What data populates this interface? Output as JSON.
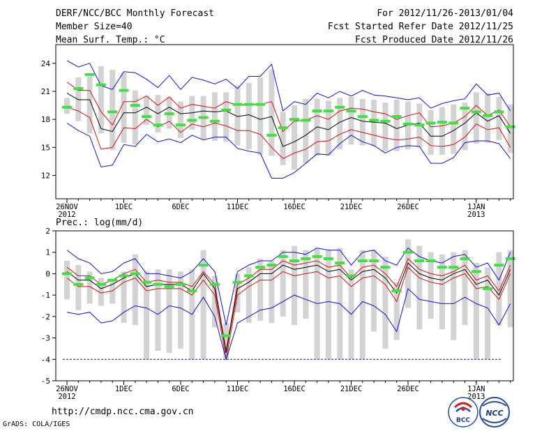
{
  "header": {
    "title": "DERF/NCC/BCC Monthly Forecast",
    "member_size": "Member Size=40",
    "temp_label": "Mean Surf. Temp.: °C",
    "forecast_period": "For 2012/11/26-2013/01/04",
    "start_date": "Fcst Started Refer Date 2012/11/25",
    "produced_date": "Fcst Produced Date 2012/11/26"
  },
  "footer": {
    "url": "http://cmdp.ncc.cma.gov.cn",
    "grads": "GrADS: COLA/IGES",
    "logo1": "BCC",
    "logo2": "NCC"
  },
  "colors": {
    "envelope": "#1010d0",
    "spread": "#d01010",
    "mean": "#000000",
    "box": "#d3d3d3",
    "obs": "#40e040",
    "frame": "#000000"
  },
  "chart_data": [
    {
      "type": "line",
      "title": "Mean Surf. Temp.: °C",
      "xlabel": "",
      "ylabel": "°C",
      "ylim": [
        9.5,
        26
      ],
      "yticks": [
        12,
        15,
        18,
        21,
        24
      ],
      "xtick_labels": [
        {
          "day": 1,
          "label": "26NOV",
          "sub": "2012"
        },
        {
          "day": 6,
          "label": "1DEC"
        },
        {
          "day": 11,
          "label": "6DEC"
        },
        {
          "day": 16,
          "label": "11DEC"
        },
        {
          "day": 21,
          "label": "16DEC"
        },
        {
          "day": 26,
          "label": "21DEC"
        },
        {
          "day": 31,
          "label": "26DEC"
        },
        {
          "day": 37,
          "label": "1JAN",
          "sub": "2013"
        }
      ],
      "days": [
        1,
        2,
        3,
        4,
        5,
        6,
        7,
        8,
        9,
        10,
        11,
        12,
        13,
        14,
        15,
        16,
        17,
        18,
        19,
        20,
        21,
        22,
        23,
        24,
        25,
        26,
        27,
        28,
        29,
        30,
        31,
        32,
        33,
        34,
        35,
        36,
        37,
        38,
        39,
        40
      ],
      "series": [
        {
          "name": "max",
          "role": "envelope",
          "values": [
            24.3,
            23.6,
            24.0,
            21.6,
            21.2,
            23.1,
            23.0,
            22.3,
            21.4,
            22.7,
            21.2,
            22.5,
            22.2,
            21.8,
            22.3,
            21.3,
            22.6,
            22.6,
            23.9,
            18.9,
            19.9,
            19.6,
            20.8,
            20.3,
            21.0,
            20.5,
            21.1,
            20.6,
            20.5,
            20.3,
            20.1,
            20.3,
            19.2,
            19.7,
            20.0,
            20.2,
            21.8,
            20.6,
            20.8,
            18.9
          ]
        },
        {
          "name": "upper",
          "role": "spread",
          "values": [
            22.0,
            21.1,
            21.1,
            18.8,
            17.4,
            19.9,
            19.9,
            20.5,
            19.5,
            20.4,
            19.2,
            19.6,
            19.4,
            19.2,
            19.9,
            19.5,
            19.6,
            19.6,
            19.9,
            16.7,
            17.8,
            17.9,
            18.4,
            18.0,
            18.9,
            19.2,
            19.1,
            18.8,
            18.6,
            18.0,
            18.4,
            18.7,
            17.2,
            17.3,
            17.6,
            18.3,
            19.5,
            18.4,
            19.0,
            17.2
          ]
        },
        {
          "name": "mean",
          "role": "mean",
          "values": [
            20.8,
            20.1,
            20.1,
            17.0,
            16.7,
            18.7,
            18.7,
            19.3,
            18.6,
            19.3,
            18.6,
            18.7,
            18.9,
            18.8,
            18.9,
            18.3,
            18.5,
            18.0,
            18.3,
            15.1,
            15.6,
            16.3,
            17.2,
            16.9,
            17.7,
            18.2,
            17.8,
            17.7,
            17.6,
            17.0,
            17.4,
            17.6,
            16.2,
            16.2,
            16.8,
            17.6,
            18.7,
            17.8,
            18.4,
            16.5
          ]
        },
        {
          "name": "lower",
          "role": "spread",
          "values": [
            19.3,
            18.9,
            18.2,
            14.8,
            15.0,
            17.1,
            17.0,
            18.0,
            17.2,
            17.8,
            16.6,
            17.5,
            17.2,
            17.6,
            17.3,
            16.8,
            16.8,
            16.4,
            15.0,
            13.8,
            14.4,
            14.8,
            15.6,
            15.7,
            16.4,
            16.9,
            16.6,
            16.3,
            16.0,
            15.8,
            15.9,
            16.1,
            15.2,
            15.1,
            15.3,
            16.1,
            17.5,
            16.9,
            17.1,
            15.0
          ]
        },
        {
          "name": "min",
          "role": "envelope",
          "values": [
            17.6,
            16.8,
            16.2,
            12.9,
            13.1,
            15.3,
            15.1,
            16.4,
            15.6,
            15.9,
            15.5,
            16.3,
            15.8,
            16.1,
            16.1,
            14.9,
            14.6,
            14.4,
            11.7,
            11.7,
            12.3,
            13.3,
            14.3,
            14.2,
            15.4,
            16.3,
            15.6,
            15.2,
            14.4,
            15.0,
            15.2,
            15.1,
            13.3,
            13.3,
            13.9,
            15.5,
            15.7,
            15.7,
            15.4,
            13.8
          ]
        },
        {
          "name": "observed",
          "role": "obs",
          "values": [
            19.3,
            21.3,
            22.8,
            21.7,
            18.8,
            21.1,
            19.5,
            18.3,
            17.4,
            18.6,
            17.4,
            17.9,
            18.2,
            17.8,
            19.0,
            19.6,
            19.6,
            19.6,
            16.3,
            17.1,
            18.0,
            17.9,
            18.9,
            18.9,
            19.3,
            18.9,
            18.3,
            17.9,
            17.8,
            18.3,
            17.5,
            17.4,
            17.6,
            17.7,
            17.6,
            19.2,
            18.8,
            18.4,
            18.8,
            17.2
          ]
        }
      ],
      "boxes": [
        {
          "low": 18.6,
          "high": 20.3
        },
        {
          "low": 17.8,
          "high": 22.5
        },
        {
          "low": 16.5,
          "high": 22.6
        },
        {
          "low": 16.5,
          "high": 23.7
        },
        {
          "low": 14.7,
          "high": 23.3
        },
        {
          "low": 15.5,
          "high": 23.0
        },
        {
          "low": 15.3,
          "high": 21.1
        },
        {
          "low": 17.4,
          "high": 20.5
        },
        {
          "low": 16.6,
          "high": 20.6
        },
        {
          "low": 17.0,
          "high": 20.4
        },
        {
          "low": 16.0,
          "high": 19.9
        },
        {
          "low": 16.9,
          "high": 20.5
        },
        {
          "low": 15.9,
          "high": 20.5
        },
        {
          "low": 15.7,
          "high": 20.9
        },
        {
          "low": 15.6,
          "high": 20.9
        },
        {
          "low": 15.2,
          "high": 21.6
        },
        {
          "low": 14.8,
          "high": 21.9
        },
        {
          "low": 14.2,
          "high": 22.5
        },
        {
          "low": 14.1,
          "high": 23.3
        },
        {
          "low": 13.1,
          "high": 18.8
        },
        {
          "low": 12.6,
          "high": 19.5
        },
        {
          "low": 13.3,
          "high": 20.2
        },
        {
          "low": 14.1,
          "high": 20.2
        },
        {
          "low": 14.1,
          "high": 20.0
        },
        {
          "low": 14.8,
          "high": 20.3
        },
        {
          "low": 15.3,
          "high": 20.4
        },
        {
          "low": 15.2,
          "high": 20.2
        },
        {
          "low": 15.1,
          "high": 20.1
        },
        {
          "low": 14.6,
          "high": 19.8
        },
        {
          "low": 14.6,
          "high": 20.1
        },
        {
          "low": 14.8,
          "high": 19.9
        },
        {
          "low": 15.0,
          "high": 19.7
        },
        {
          "low": 14.2,
          "high": 19.0
        },
        {
          "low": 14.2,
          "high": 19.3
        },
        {
          "low": 14.3,
          "high": 19.6
        },
        {
          "low": 14.7,
          "high": 19.8
        },
        {
          "low": 15.4,
          "high": 20.9
        },
        {
          "low": 15.5,
          "high": 20.8
        },
        {
          "low": 15.8,
          "high": 20.4
        },
        {
          "low": 14.4,
          "high": 19.6
        }
      ]
    },
    {
      "type": "line",
      "title": "Prec.: log(mm/d)",
      "xlabel": "",
      "ylabel": "log(mm/d)",
      "ylim": [
        -5,
        2
      ],
      "yticks": [
        -5,
        -4,
        -3,
        -2,
        -1,
        0,
        1,
        2
      ],
      "baseline": -4,
      "xtick_labels": [
        {
          "day": 1,
          "label": "26NOV",
          "sub": "2012"
        },
        {
          "day": 6,
          "label": "1DEC"
        },
        {
          "day": 11,
          "label": "6DEC"
        },
        {
          "day": 16,
          "label": "11DEC"
        },
        {
          "day": 21,
          "label": "16DEC"
        },
        {
          "day": 26,
          "label": "21DEC"
        },
        {
          "day": 31,
          "label": "26DEC"
        },
        {
          "day": 37,
          "label": "1JAN",
          "sub": "2013"
        }
      ],
      "days": [
        1,
        2,
        3,
        4,
        5,
        6,
        7,
        8,
        9,
        10,
        11,
        12,
        13,
        14,
        15,
        16,
        17,
        18,
        19,
        20,
        21,
        22,
        23,
        24,
        25,
        26,
        27,
        28,
        29,
        30,
        31,
        32,
        33,
        34,
        35,
        36,
        37,
        38,
        39,
        40
      ],
      "series": [
        {
          "name": "max",
          "role": "envelope",
          "values": [
            1.1,
            0.7,
            0.5,
            0.0,
            0.1,
            0.5,
            0.7,
            0.0,
            0.0,
            -0.1,
            -0.2,
            0.1,
            0.7,
            0.1,
            -2.4,
            0.1,
            0.4,
            0.6,
            0.6,
            1.0,
            1.0,
            0.9,
            1.2,
            1.1,
            1.1,
            0.4,
            1.0,
            1.1,
            0.6,
            0.4,
            1.2,
            0.8,
            0.6,
            0.5,
            0.8,
            0.9,
            0.3,
            0.5,
            -0.3,
            1.0
          ]
        },
        {
          "name": "upper",
          "role": "spread",
          "values": [
            0.3,
            -0.1,
            -0.1,
            -0.5,
            -0.3,
            0.0,
            0.2,
            -0.4,
            -0.3,
            -0.4,
            -0.4,
            -0.6,
            0.1,
            -0.5,
            -3.6,
            -0.5,
            -0.2,
            0.2,
            0.2,
            0.6,
            0.4,
            0.5,
            0.6,
            0.3,
            0.4,
            -0.2,
            0.3,
            0.4,
            0.0,
            -0.6,
            0.7,
            0.2,
            0.0,
            -0.1,
            0.1,
            0.4,
            -0.3,
            -0.1,
            -0.8,
            0.4
          ]
        },
        {
          "name": "mean",
          "role": "mean",
          "values": [
            0.1,
            -0.3,
            -0.3,
            -0.7,
            -0.5,
            -0.2,
            0.0,
            -0.6,
            -0.5,
            -0.5,
            -0.5,
            -0.8,
            0.0,
            -0.7,
            -3.7,
            -0.7,
            -0.4,
            0.0,
            0.0,
            0.4,
            0.2,
            0.3,
            0.4,
            0.1,
            0.2,
            -0.3,
            0.1,
            0.2,
            -0.2,
            -0.9,
            0.5,
            0.0,
            -0.2,
            -0.3,
            0.0,
            0.2,
            -0.5,
            -0.3,
            -1.0,
            0.2
          ]
        },
        {
          "name": "lower",
          "role": "spread",
          "values": [
            -0.2,
            -0.6,
            -0.6,
            -0.9,
            -0.8,
            -0.4,
            -0.2,
            -0.8,
            -0.7,
            -0.7,
            -0.7,
            -1.0,
            -0.3,
            -1.0,
            -4.0,
            -1.0,
            -0.6,
            -0.3,
            -0.3,
            0.1,
            -0.1,
            0.0,
            0.1,
            -0.2,
            -0.1,
            -0.6,
            -0.2,
            -0.1,
            -0.5,
            -1.3,
            0.3,
            -0.2,
            -0.4,
            -0.5,
            -0.2,
            0.0,
            -0.7,
            -0.6,
            -1.2,
            0.0
          ]
        },
        {
          "name": "min",
          "role": "envelope",
          "values": [
            -1.8,
            -1.9,
            -1.8,
            -2.3,
            -2.2,
            -1.8,
            -1.5,
            -1.6,
            -1.9,
            -1.5,
            -1.6,
            -1.9,
            -1.1,
            -2.0,
            -4.0,
            -2.3,
            -2.0,
            -1.7,
            -1.6,
            -1.3,
            -1.0,
            -1.2,
            -1.4,
            -1.3,
            -1.4,
            -1.9,
            -1.3,
            -1.5,
            -1.9,
            -2.7,
            -0.7,
            -1.2,
            -1.3,
            -1.4,
            -1.4,
            -1.1,
            -1.4,
            -1.6,
            -2.4,
            -1.4
          ]
        },
        {
          "name": "observed",
          "role": "obs",
          "values": [
            0.0,
            -0.5,
            -0.2,
            -0.5,
            -0.3,
            -0.1,
            0.0,
            -0.4,
            -0.5,
            -0.6,
            -0.5,
            -0.8,
            0.4,
            -0.5,
            -2.9,
            -0.4,
            -0.1,
            0.3,
            0.4,
            0.8,
            0.6,
            0.7,
            0.8,
            0.7,
            0.5,
            -0.1,
            0.6,
            0.6,
            0.3,
            -0.8,
            1.0,
            0.6,
            0.6,
            0.3,
            0.3,
            0.7,
            0.1,
            -0.7,
            0.4,
            0.7
          ]
        }
      ],
      "boxes": [
        {
          "low": -1.2,
          "high": 0.6
        },
        {
          "low": -1.7,
          "high": 0.4
        },
        {
          "low": -1.4,
          "high": 0.1
        },
        {
          "low": -1.5,
          "high": -0.2
        },
        {
          "low": -1.4,
          "high": -0.3
        },
        {
          "low": -2.3,
          "high": 0.1
        },
        {
          "low": -2.4,
          "high": 0.9
        },
        {
          "low": -4.0,
          "high": 0.1
        },
        {
          "low": -3.6,
          "high": 0.2
        },
        {
          "low": -3.7,
          "high": 0.2
        },
        {
          "low": -3.5,
          "high": 0.1
        },
        {
          "low": -4.0,
          "high": 0.2
        },
        {
          "low": -4.0,
          "high": 1.1
        },
        {
          "low": -2.5,
          "high": -0.1
        },
        {
          "low": -4.0,
          "high": -2.3
        },
        {
          "low": -1.8,
          "high": 0.0
        },
        {
          "low": -2.3,
          "high": 0.3
        },
        {
          "low": -2.2,
          "high": 0.7
        },
        {
          "low": -2.3,
          "high": 0.6
        },
        {
          "low": -2.0,
          "high": 1.1
        },
        {
          "low": -2.4,
          "high": 1.3
        },
        {
          "low": -2.1,
          "high": 1.1
        },
        {
          "low": -4.0,
          "high": 1.2
        },
        {
          "low": -4.0,
          "high": 1.1
        },
        {
          "low": -4.0,
          "high": 1.2
        },
        {
          "low": -4.0,
          "high": 0.2
        },
        {
          "low": -4.0,
          "high": 1.1
        },
        {
          "low": -2.7,
          "high": 1.1
        },
        {
          "low": -3.5,
          "high": 0.8
        },
        {
          "low": -3.1,
          "high": -0.4
        },
        {
          "low": -1.6,
          "high": 1.6
        },
        {
          "low": -2.6,
          "high": 1.3
        },
        {
          "low": -2.1,
          "high": 1.0
        },
        {
          "low": -2.6,
          "high": 0.9
        },
        {
          "low": -3.1,
          "high": 1.0
        },
        {
          "low": -2.4,
          "high": 1.1
        },
        {
          "low": -4.0,
          "high": 0.5
        },
        {
          "low": -4.0,
          "high": 0.3
        },
        {
          "low": -2.4,
          "high": 1.0
        },
        {
          "low": -2.5,
          "high": 1.1
        }
      ]
    }
  ]
}
